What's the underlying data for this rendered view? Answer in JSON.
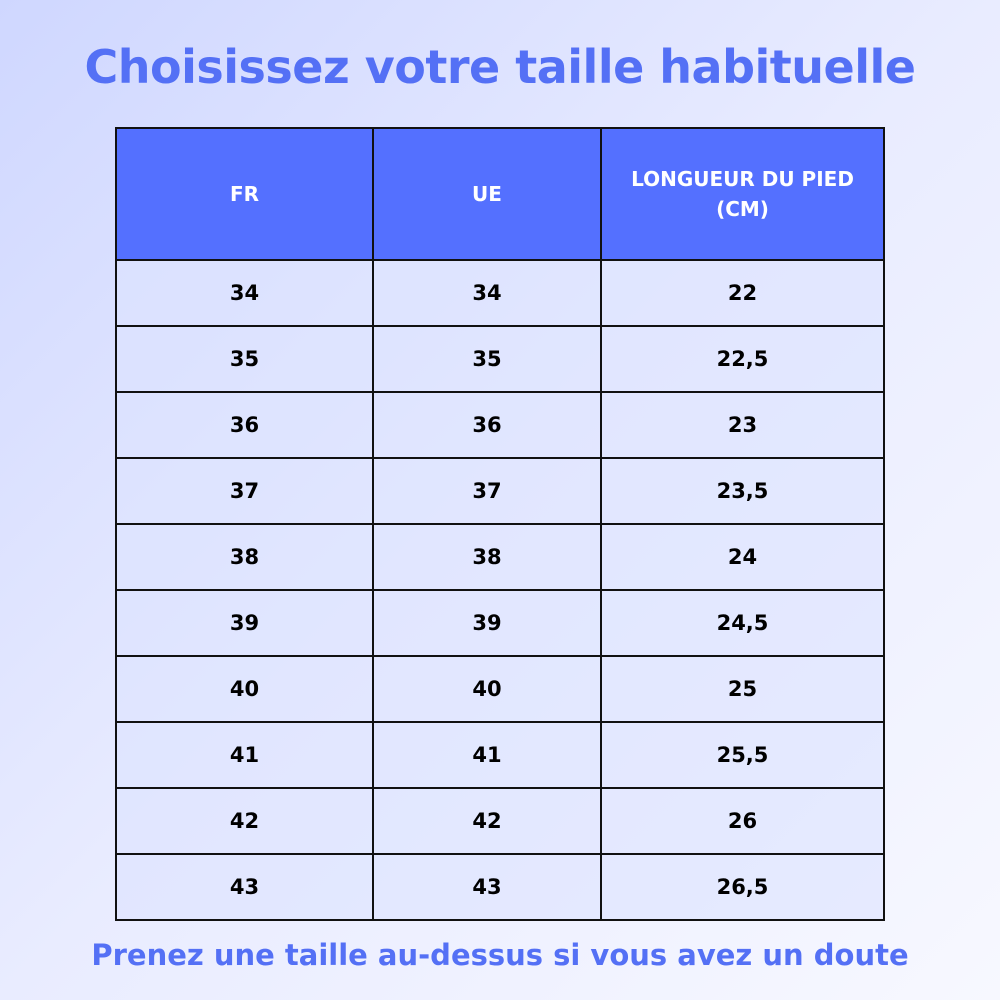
{
  "header": {
    "title": "Choisissez votre taille habituelle"
  },
  "table": {
    "columns": [
      "FR",
      "UE",
      "LONGUEUR DU PIED (CM)"
    ],
    "rows": [
      [
        "34",
        "34",
        "22"
      ],
      [
        "35",
        "35",
        "22,5"
      ],
      [
        "36",
        "36",
        "23"
      ],
      [
        "37",
        "37",
        "23,5"
      ],
      [
        "38",
        "38",
        "24"
      ],
      [
        "39",
        "39",
        "24,5"
      ],
      [
        "40",
        "40",
        "25"
      ],
      [
        "41",
        "41",
        "25,5"
      ],
      [
        "42",
        "42",
        "26"
      ],
      [
        "43",
        "43",
        "26,5"
      ]
    ]
  },
  "footer": {
    "note": "Prenez une taille au-dessus si vous avez un doute"
  }
}
